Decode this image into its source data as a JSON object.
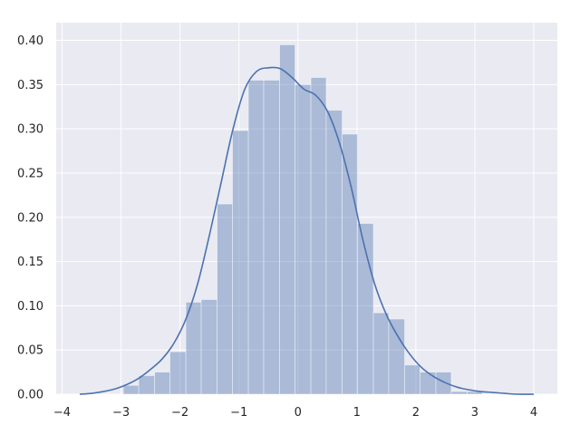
{
  "chart_data": {
    "type": "bar",
    "title": "",
    "xlabel": "",
    "ylabel": "",
    "xlim": [
      -4.1,
      4.4
    ],
    "ylim": [
      0,
      0.42
    ],
    "grid": true,
    "xticks": [
      -4,
      -3,
      -2,
      -1,
      0,
      1,
      2,
      3,
      4
    ],
    "xtick_labels": [
      "−4",
      "−3",
      "−2",
      "−1",
      "0",
      "1",
      "2",
      "3",
      "4"
    ],
    "yticks": [
      0.0,
      0.05,
      0.1,
      0.15,
      0.2,
      0.25,
      0.3,
      0.35,
      0.4
    ],
    "ytick_labels": [
      "0.00",
      "0.05",
      "0.10",
      "0.15",
      "0.20",
      "0.25",
      "0.30",
      "0.35",
      "0.40"
    ],
    "histogram": {
      "bin_edges": [
        -2.96,
        -2.7,
        -2.43,
        -2.17,
        -1.9,
        -1.64,
        -1.37,
        -1.11,
        -0.84,
        -0.58,
        -0.31,
        -0.05,
        0.22,
        0.48,
        0.75,
        1.01,
        1.28,
        1.54,
        1.81,
        2.07,
        2.34,
        2.6,
        2.87,
        3.13
      ],
      "densities": [
        0.01,
        0.021,
        0.025,
        0.048,
        0.104,
        0.107,
        0.215,
        0.298,
        0.355,
        0.355,
        0.395,
        0.35,
        0.358,
        0.321,
        0.294,
        0.193,
        0.092,
        0.085,
        0.033,
        0.025,
        0.025,
        0.003,
        0.003
      ],
      "color": "#4c72b0",
      "opacity": 0.4
    },
    "kde": {
      "x": [
        -3.7,
        -3.5,
        -3.3,
        -3.1,
        -2.9,
        -2.7,
        -2.5,
        -2.3,
        -2.1,
        -1.9,
        -1.7,
        -1.5,
        -1.3,
        -1.1,
        -0.9,
        -0.7,
        -0.5,
        -0.3,
        -0.1,
        0.1,
        0.3,
        0.5,
        0.7,
        0.9,
        1.1,
        1.3,
        1.5,
        1.7,
        1.9,
        2.1,
        2.3,
        2.5,
        2.7,
        2.9,
        3.1,
        3.3,
        3.5,
        3.7,
        4.0
      ],
      "y": [
        0.0,
        0.001,
        0.003,
        0.006,
        0.011,
        0.018,
        0.028,
        0.04,
        0.058,
        0.085,
        0.125,
        0.18,
        0.24,
        0.3,
        0.345,
        0.365,
        0.369,
        0.368,
        0.358,
        0.345,
        0.338,
        0.32,
        0.285,
        0.235,
        0.175,
        0.125,
        0.09,
        0.065,
        0.045,
        0.03,
        0.02,
        0.013,
        0.008,
        0.005,
        0.003,
        0.002,
        0.001,
        0.0,
        0.0
      ],
      "color": "#4c72b0"
    },
    "background": "#eaeaf2",
    "grid_color": "#ffffff"
  }
}
